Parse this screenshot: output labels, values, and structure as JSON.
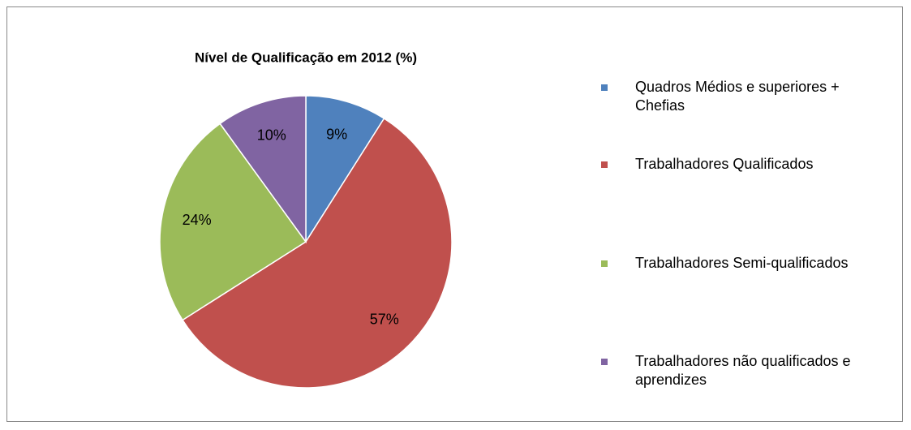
{
  "chart_data": {
    "type": "pie",
    "title": "Nível de Qualificação em 2012 (%)",
    "categories": [
      "Quadros Médios e superiores + Chefias",
      "Trabalhadores Qualificados",
      "Trabalhadores Semi-qualificados",
      "Trabalhadores não qualificados e aprendizes"
    ],
    "values": [
      9,
      57,
      24,
      10
    ],
    "value_labels": [
      "9%",
      "57%",
      "24%",
      "10%"
    ],
    "colors": [
      "#4f81bd",
      "#c0504d",
      "#9bbb59",
      "#8064a2"
    ],
    "legend": "right"
  }
}
